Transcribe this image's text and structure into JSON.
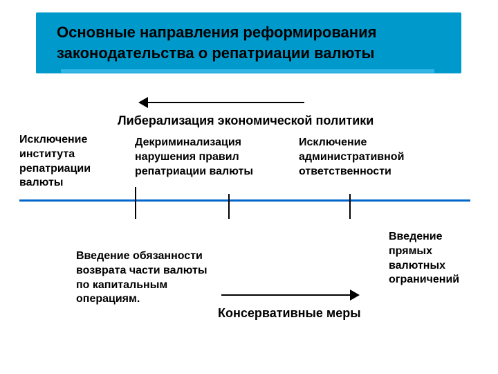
{
  "header": {
    "title": "Основные направления реформирования законодательства о репатриации валюты"
  },
  "liberalization": {
    "label": "Либерализация экономической политики",
    "arrow_direction": "left",
    "arrow_color": "#000000"
  },
  "top_items": {
    "a": "Исключение института репатриации валюты",
    "b": "Декриминализация нарушения правил репатриации валюты",
    "c": "Исключение административной ответственности"
  },
  "timeline": {
    "color": "#0066cc",
    "tick_color": "#000000"
  },
  "bottom_items": {
    "a": "Введение обязанности возврата части валюты по капитальным операциям.",
    "b": "Введение прямых валютных ограничений"
  },
  "conservative": {
    "label": "Консервативные меры",
    "arrow_direction": "right",
    "arrow_color": "#000000"
  },
  "styling": {
    "header_bg": "#0099cc",
    "underline_bg": "#33b5e5",
    "page_bg": "#ffffff",
    "text_color": "#000000",
    "title_fontsize": 22,
    "body_fontsize": 16,
    "label_fontsize": 18
  }
}
